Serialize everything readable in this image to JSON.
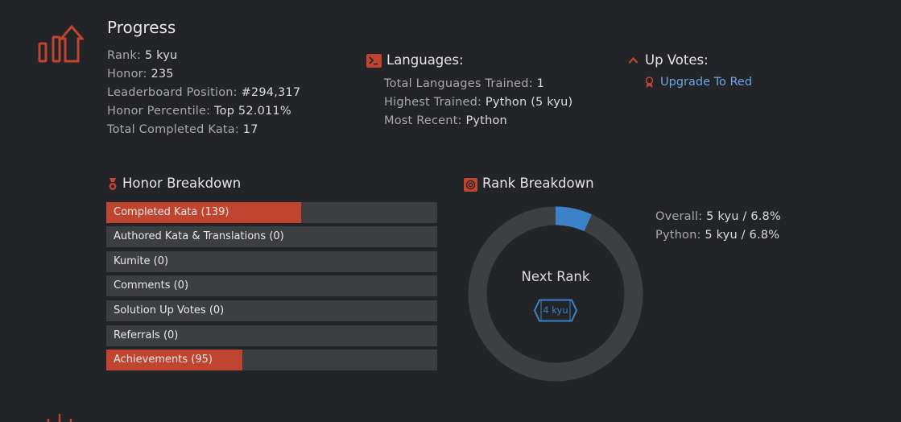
{
  "progress": {
    "title": "Progress",
    "stats": [
      {
        "label": "Rank:",
        "value": "5 kyu"
      },
      {
        "label": "Honor:",
        "value": "235"
      },
      {
        "label": "Leaderboard Position:",
        "value": "#294,317"
      },
      {
        "label": "Honor Percentile:",
        "value": "Top 52.011%"
      },
      {
        "label": "Total Completed Kata:",
        "value": "17"
      }
    ]
  },
  "languages": {
    "title": "Languages:",
    "stats": [
      {
        "label": "Total Languages Trained:",
        "value": "1"
      },
      {
        "label": "Highest Trained:",
        "value": "Python (5 kyu)"
      },
      {
        "label": "Most Recent:",
        "value": "Python"
      }
    ]
  },
  "upvotes": {
    "title": "Up Votes:",
    "link": "Upgrade To Red"
  },
  "honor_breakdown": {
    "title": "Honor Breakdown",
    "bars": [
      {
        "label": "Completed Kata (139)",
        "fill": 0.59
      },
      {
        "label": "Authored Kata & Translations (0)",
        "fill": 0
      },
      {
        "label": "Kumite (0)",
        "fill": 0
      },
      {
        "label": "Comments (0)",
        "fill": 0
      },
      {
        "label": "Solution Up Votes (0)",
        "fill": 0
      },
      {
        "label": "Referrals (0)",
        "fill": 0
      },
      {
        "label": "Achievements (95)",
        "fill": 0.41
      }
    ]
  },
  "rank_breakdown": {
    "title": "Rank Breakdown",
    "donut_progress": 0.068,
    "center_label": "Next Rank",
    "next_rank_badge": "4 kyu",
    "rows": [
      {
        "label": "Overall:",
        "value": "5 kyu / 6.8%"
      },
      {
        "label": "Python:",
        "value": "5 kyu / 6.8%"
      }
    ]
  },
  "colors": {
    "accent_red": "#bf4530",
    "accent_blue": "#3b82c8",
    "link_blue": "#6da6e3"
  }
}
